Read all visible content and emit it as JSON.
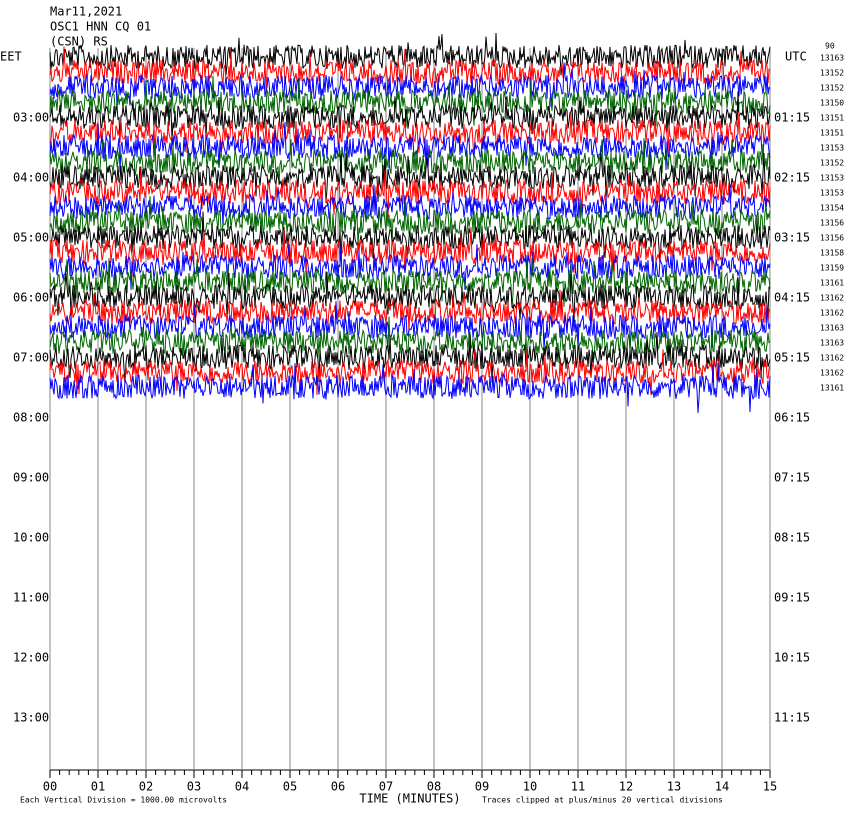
{
  "chart_data": {
    "type": "helicorder",
    "title_lines": [
      "Mar11,2021",
      "OSC1 HNN CQ 01",
      "(CSN) RS"
    ],
    "left_axis_label": "EET",
    "right_axis_label": "UTC",
    "corner_label": "90",
    "eet_labels": [
      "03:00",
      "04:00",
      "05:00",
      "06:00",
      "07:00",
      "08:00",
      "09:00",
      "10:00",
      "11:00",
      "12:00",
      "13:00"
    ],
    "utc_labels": [
      "01:15",
      "02:15",
      "03:15",
      "04:15",
      "05:15",
      "06:15",
      "07:15",
      "08:15",
      "09:15",
      "10:15",
      "11:15"
    ],
    "trace_labels": [
      "13163",
      "13152",
      "13152",
      "13150",
      "13151",
      "13151",
      "13153",
      "13152",
      "13153",
      "13153",
      "13154",
      "13156",
      "13156",
      "13158",
      "13159",
      "13161",
      "13162",
      "13162",
      "13163",
      "13163",
      "13162",
      "13162",
      "13161"
    ],
    "trace_colors": [
      "#000000",
      "#ff0000",
      "#0000ff",
      "#006600"
    ],
    "x_label": "TIME (MINUTES)",
    "xlim": [
      0,
      15
    ],
    "xticks": [
      {
        "value": 0,
        "label": "00"
      },
      {
        "value": 1,
        "label": "01"
      },
      {
        "value": 2,
        "label": "02"
      },
      {
        "value": 3,
        "label": "03"
      },
      {
        "value": 4,
        "label": "04"
      },
      {
        "value": 5,
        "label": "05"
      },
      {
        "value": 6,
        "label": "06"
      },
      {
        "value": 7,
        "label": "07"
      },
      {
        "value": 8,
        "label": "08"
      },
      {
        "value": 9,
        "label": "09"
      },
      {
        "value": 10,
        "label": "10"
      },
      {
        "value": 11,
        "label": "11"
      },
      {
        "value": 12,
        "label": "12"
      },
      {
        "value": 13,
        "label": "13"
      },
      {
        "value": 14,
        "label": "14"
      },
      {
        "value": 15,
        "label": "15"
      }
    ],
    "footer_left": "Each Vertical Division = 1000.00 microvolts",
    "footer_right": "Traces clipped at plus/minus 20 vertical divisions",
    "grid": true
  }
}
